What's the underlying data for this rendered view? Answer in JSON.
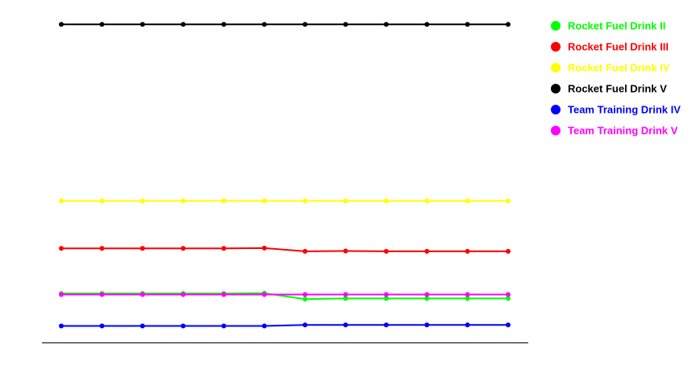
{
  "chart_data": {
    "type": "line",
    "title": "",
    "xlabel": "",
    "ylabel": "",
    "ylim": [
      0,
      100
    ],
    "x": [
      1,
      2,
      3,
      4,
      5,
      6,
      7,
      8,
      9,
      10,
      11,
      12
    ],
    "grid": false,
    "legend_position": "top-right",
    "series": [
      {
        "name": "Rocket Fuel Drink II",
        "color": "#00ff00",
        "values": [
          15.2,
          15.2,
          15.2,
          15.2,
          15.2,
          15.3,
          13.5,
          13.7,
          13.7,
          13.7,
          13.7,
          13.7
        ]
      },
      {
        "name": "Rocket Fuel Drink III",
        "color": "#ff0000",
        "values": [
          29.0,
          29.0,
          29.0,
          29.0,
          29.0,
          29.1,
          28.1,
          28.2,
          28.1,
          28.1,
          28.1,
          28.1
        ]
      },
      {
        "name": "Rocket Fuel Drink IV",
        "color": "#ffff00",
        "values": [
          43.5,
          43.5,
          43.5,
          43.5,
          43.5,
          43.5,
          43.5,
          43.5,
          43.5,
          43.5,
          43.5,
          43.5
        ]
      },
      {
        "name": "Rocket Fuel Drink V",
        "color": "#000000",
        "values": [
          97.5,
          97.5,
          97.5,
          97.5,
          97.5,
          97.5,
          97.5,
          97.5,
          97.5,
          97.5,
          97.5,
          97.5
        ]
      },
      {
        "name": "Team Training Drink IV",
        "color": "#0000ff",
        "values": [
          5.3,
          5.3,
          5.3,
          5.3,
          5.3,
          5.3,
          5.6,
          5.6,
          5.6,
          5.6,
          5.6,
          5.6
        ]
      },
      {
        "name": "Team Training Drink V",
        "color": "#ff00ff",
        "values": [
          14.9,
          14.9,
          14.9,
          14.9,
          14.9,
          14.9,
          14.9,
          14.9,
          14.9,
          14.9,
          14.9,
          14.9
        ]
      }
    ]
  }
}
